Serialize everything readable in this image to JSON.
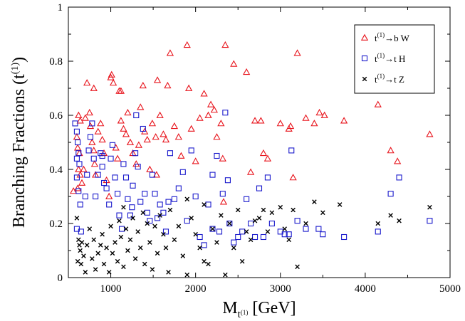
{
  "chart_data": {
    "type": "scatter",
    "xlabel": "M",
    "xlabel_sub": "t",
    "xlabel_sup": "(1)",
    "xlabel_unit": "[GeV]",
    "ylabel": "Branching Fractions (t",
    "ylabel_sup": "(1)",
    "ylabel_end": ")",
    "xlim": [
      500,
      5000
    ],
    "ylim": [
      0,
      1
    ],
    "xticks": [
      1000,
      2000,
      3000,
      4000,
      5000
    ],
    "yticks": [
      0,
      0.2,
      0.4,
      0.6,
      0.8,
      1
    ],
    "ytick_labels": [
      "0",
      "0.2",
      "0.4",
      "0.6",
      "0.8",
      "1"
    ],
    "grid": false,
    "legend_position": "top-right",
    "series": [
      {
        "name": "t(1)→b W",
        "legend": {
          "pre": "t",
          "sup": "(1)",
          "post": "b W"
        },
        "marker": "triangle",
        "color": "#e8141c",
        "points": [
          [
            620,
            0.6
          ],
          [
            640,
            0.58
          ],
          [
            600,
            0.52
          ],
          [
            610,
            0.48
          ],
          [
            630,
            0.46
          ],
          [
            620,
            0.4
          ],
          [
            640,
            0.38
          ],
          [
            610,
            0.33
          ],
          [
            660,
            0.35
          ],
          [
            680,
            0.4
          ],
          [
            700,
            0.59
          ],
          [
            720,
            0.72
          ],
          [
            750,
            0.61
          ],
          [
            760,
            0.56
          ],
          [
            780,
            0.5
          ],
          [
            800,
            0.47
          ],
          [
            810,
            0.42
          ],
          [
            820,
            0.38
          ],
          [
            800,
            0.7
          ],
          [
            850,
            0.54
          ],
          [
            880,
            0.57
          ],
          [
            900,
            0.51
          ],
          [
            920,
            0.46
          ],
          [
            950,
            0.36
          ],
          [
            980,
            0.3
          ],
          [
            1000,
            0.74
          ],
          [
            1010,
            0.75
          ],
          [
            1030,
            0.72
          ],
          [
            1060,
            0.48
          ],
          [
            1080,
            0.44
          ],
          [
            1100,
            0.69
          ],
          [
            1120,
            0.69
          ],
          [
            1120,
            0.58
          ],
          [
            1150,
            0.55
          ],
          [
            1180,
            0.53
          ],
          [
            1200,
            0.61
          ],
          [
            1230,
            0.5
          ],
          [
            1260,
            0.46
          ],
          [
            1300,
            0.42
          ],
          [
            1330,
            0.49
          ],
          [
            1350,
            0.63
          ],
          [
            1380,
            0.71
          ],
          [
            1400,
            0.54
          ],
          [
            1430,
            0.51
          ],
          [
            1460,
            0.4
          ],
          [
            1490,
            0.57
          ],
          [
            1530,
            0.52
          ],
          [
            1550,
            0.73
          ],
          [
            1580,
            0.6
          ],
          [
            1620,
            0.53
          ],
          [
            1650,
            0.51
          ],
          [
            1670,
            0.71
          ],
          [
            1700,
            0.83
          ],
          [
            1750,
            0.56
          ],
          [
            1800,
            0.52
          ],
          [
            1830,
            0.45
          ],
          [
            1900,
            0.86
          ],
          [
            1920,
            0.7
          ],
          [
            1950,
            0.55
          ],
          [
            2000,
            0.43
          ],
          [
            2050,
            0.59
          ],
          [
            2100,
            0.68
          ],
          [
            2150,
            0.6
          ],
          [
            2180,
            0.64
          ],
          [
            2220,
            0.62
          ],
          [
            2250,
            0.52
          ],
          [
            2300,
            0.57
          ],
          [
            2320,
            0.44
          ],
          [
            2350,
            0.86
          ],
          [
            2450,
            0.79
          ],
          [
            2600,
            0.76
          ],
          [
            2650,
            0.39
          ],
          [
            2700,
            0.58
          ],
          [
            2770,
            0.58
          ],
          [
            2800,
            0.46
          ],
          [
            2850,
            0.44
          ],
          [
            3000,
            0.57
          ],
          [
            3100,
            0.55
          ],
          [
            3120,
            0.56
          ],
          [
            3150,
            0.37
          ],
          [
            3200,
            0.83
          ],
          [
            3300,
            0.59
          ],
          [
            3400,
            0.57
          ],
          [
            3460,
            0.61
          ],
          [
            3520,
            0.6
          ],
          [
            3750,
            0.58
          ],
          [
            4150,
            0.64
          ],
          [
            4300,
            0.47
          ],
          [
            4380,
            0.43
          ],
          [
            4760,
            0.53
          ],
          [
            2330,
            0.28
          ],
          [
            1540,
            0.38
          ],
          [
            560,
            0.32
          ]
        ]
      },
      {
        "name": "t(1)→t H",
        "legend": {
          "pre": "t",
          "sup": "(1)",
          "post": "t H"
        },
        "marker": "square",
        "color": "#1a1acc",
        "points": [
          [
            580,
            0.57
          ],
          [
            600,
            0.54
          ],
          [
            610,
            0.5
          ],
          [
            620,
            0.46
          ],
          [
            600,
            0.44
          ],
          [
            630,
            0.42
          ],
          [
            600,
            0.37
          ],
          [
            620,
            0.32
          ],
          [
            640,
            0.27
          ],
          [
            600,
            0.18
          ],
          [
            650,
            0.17
          ],
          [
            700,
            0.3
          ],
          [
            720,
            0.38
          ],
          [
            740,
            0.47
          ],
          [
            760,
            0.52
          ],
          [
            780,
            0.57
          ],
          [
            800,
            0.44
          ],
          [
            820,
            0.3
          ],
          [
            850,
            0.38
          ],
          [
            880,
            0.46
          ],
          [
            900,
            0.41
          ],
          [
            920,
            0.35
          ],
          [
            950,
            0.33
          ],
          [
            980,
            0.27
          ],
          [
            1000,
            0.44
          ],
          [
            1020,
            0.49
          ],
          [
            1050,
            0.37
          ],
          [
            1080,
            0.31
          ],
          [
            1100,
            0.23
          ],
          [
            1130,
            0.18
          ],
          [
            1150,
            0.42
          ],
          [
            1180,
            0.37
          ],
          [
            1200,
            0.29
          ],
          [
            1230,
            0.23
          ],
          [
            1260,
            0.34
          ],
          [
            1290,
            0.46
          ],
          [
            1300,
            0.6
          ],
          [
            1320,
            0.41
          ],
          [
            1350,
            0.28
          ],
          [
            1380,
            0.55
          ],
          [
            1400,
            0.31
          ],
          [
            1430,
            0.24
          ],
          [
            1460,
            0.21
          ],
          [
            1490,
            0.38
          ],
          [
            1520,
            0.31
          ],
          [
            1550,
            0.22
          ],
          [
            1580,
            0.27
          ],
          [
            1620,
            0.24
          ],
          [
            1650,
            0.17
          ],
          [
            1680,
            0.28
          ],
          [
            1700,
            0.46
          ],
          [
            1750,
            0.29
          ],
          [
            1800,
            0.33
          ],
          [
            1850,
            0.39
          ],
          [
            1900,
            0.21
          ],
          [
            1950,
            0.47
          ],
          [
            2000,
            0.3
          ],
          [
            2050,
            0.15
          ],
          [
            2100,
            0.12
          ],
          [
            2150,
            0.27
          ],
          [
            2200,
            0.38
          ],
          [
            2250,
            0.45
          ],
          [
            2280,
            0.17
          ],
          [
            2320,
            0.31
          ],
          [
            2350,
            0.61
          ],
          [
            2380,
            0.36
          ],
          [
            2400,
            0.2
          ],
          [
            2450,
            0.13
          ],
          [
            2500,
            0.15
          ],
          [
            2550,
            0.17
          ],
          [
            2600,
            0.29
          ],
          [
            2650,
            0.2
          ],
          [
            2700,
            0.15
          ],
          [
            2750,
            0.33
          ],
          [
            2800,
            0.15
          ],
          [
            2850,
            0.37
          ],
          [
            2900,
            0.2
          ],
          [
            3000,
            0.17
          ],
          [
            3050,
            0.16
          ],
          [
            3100,
            0.16
          ],
          [
            3130,
            0.47
          ],
          [
            3200,
            0.21
          ],
          [
            3300,
            0.18
          ],
          [
            3450,
            0.18
          ],
          [
            3500,
            0.16
          ],
          [
            3750,
            0.15
          ],
          [
            4150,
            0.17
          ],
          [
            4300,
            0.31
          ],
          [
            4400,
            0.37
          ],
          [
            4760,
            0.21
          ],
          [
            2200,
            0.18
          ],
          [
            1250,
            0.26
          ],
          [
            900,
            0.45
          ]
        ]
      },
      {
        "name": "t(1)→t Z",
        "legend": {
          "pre": "t",
          "sup": "(1)",
          "post": "t Z"
        },
        "marker": "x",
        "color": "#000000",
        "points": [
          [
            600,
            0.22
          ],
          [
            620,
            0.14
          ],
          [
            630,
            0.12
          ],
          [
            640,
            0.1
          ],
          [
            610,
            0.06
          ],
          [
            650,
            0.05
          ],
          [
            660,
            0.13
          ],
          [
            680,
            0.08
          ],
          [
            700,
            0.02
          ],
          [
            720,
            0.12
          ],
          [
            750,
            0.18
          ],
          [
            780,
            0.07
          ],
          [
            800,
            0.14
          ],
          [
            820,
            0.03
          ],
          [
            850,
            0.09
          ],
          [
            880,
            0.12
          ],
          [
            900,
            0.16
          ],
          [
            920,
            0.05
          ],
          [
            950,
            0.11
          ],
          [
            980,
            0.02
          ],
          [
            1000,
            0.19
          ],
          [
            1020,
            0.09
          ],
          [
            1050,
            0.13
          ],
          [
            1080,
            0.06
          ],
          [
            1100,
            0.21
          ],
          [
            1120,
            0.15
          ],
          [
            1150,
            0.04
          ],
          [
            1180,
            0.18
          ],
          [
            1200,
            0.1
          ],
          [
            1230,
            0.14
          ],
          [
            1260,
            0.22
          ],
          [
            1290,
            0.07
          ],
          [
            1320,
            0.17
          ],
          [
            1350,
            0.11
          ],
          [
            1380,
            0.24
          ],
          [
            1400,
            0.05
          ],
          [
            1430,
            0.2
          ],
          [
            1460,
            0.13
          ],
          [
            1490,
            0.03
          ],
          [
            1520,
            0.19
          ],
          [
            1550,
            0.09
          ],
          [
            1580,
            0.23
          ],
          [
            1620,
            0.16
          ],
          [
            1650,
            0.11
          ],
          [
            1680,
            0.02
          ],
          [
            1700,
            0.25
          ],
          [
            1750,
            0.14
          ],
          [
            1800,
            0.19
          ],
          [
            1850,
            0.08
          ],
          [
            1900,
            0.01
          ],
          [
            1950,
            0.22
          ],
          [
            2000,
            0.16
          ],
          [
            2050,
            0.11
          ],
          [
            2100,
            0.27
          ],
          [
            2150,
            0.05
          ],
          [
            2200,
            0.18
          ],
          [
            2250,
            0.13
          ],
          [
            2300,
            0.23
          ],
          [
            2350,
            0.01
          ],
          [
            2400,
            0.2
          ],
          [
            2450,
            0.11
          ],
          [
            2500,
            0.25
          ],
          [
            2550,
            0.06
          ],
          [
            2600,
            0.17
          ],
          [
            2650,
            0.14
          ],
          [
            2700,
            0.21
          ],
          [
            2750,
            0.22
          ],
          [
            2800,
            0.25
          ],
          [
            2850,
            0.17
          ],
          [
            2900,
            0.24
          ],
          [
            3000,
            0.26
          ],
          [
            3050,
            0.18
          ],
          [
            3100,
            0.14
          ],
          [
            3150,
            0.25
          ],
          [
            3200,
            0.04
          ],
          [
            3300,
            0.2
          ],
          [
            3400,
            0.28
          ],
          [
            3500,
            0.24
          ],
          [
            3700,
            0.27
          ],
          [
            4150,
            0.2
          ],
          [
            4300,
            0.23
          ],
          [
            4400,
            0.21
          ],
          [
            4760,
            0.26
          ],
          [
            1150,
            0.26
          ],
          [
            1900,
            0.29
          ],
          [
            2100,
            0.06
          ]
        ]
      }
    ]
  }
}
